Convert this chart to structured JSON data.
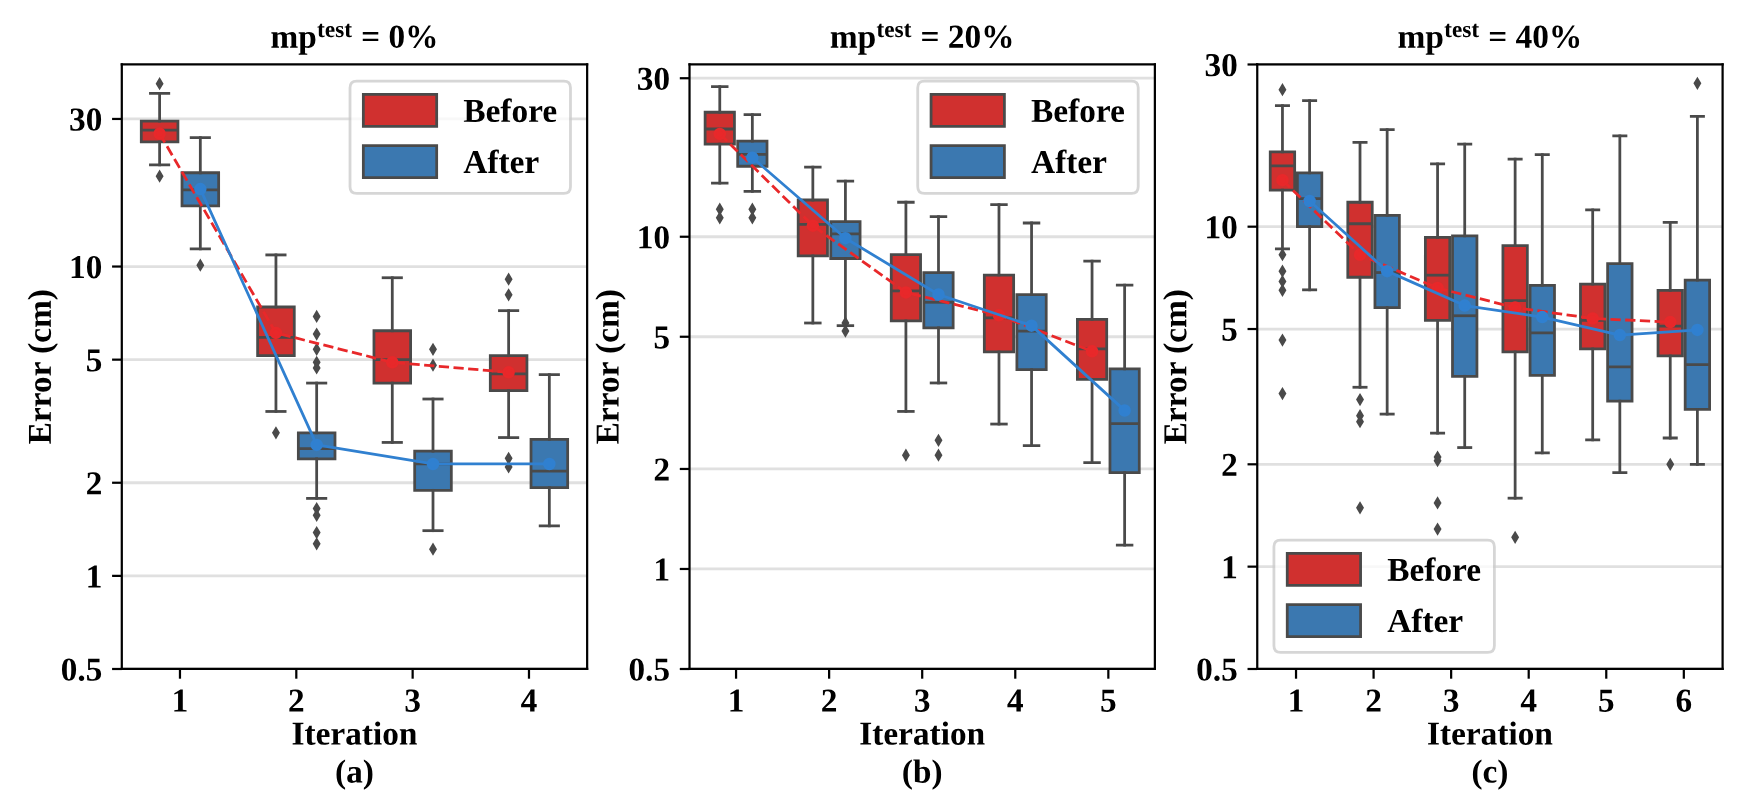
{
  "chart_data": [
    {
      "type": "box",
      "title": "mp$^{test}$ = 0%",
      "xlabel": "Iteration",
      "ylabel": "Error (cm)",
      "annotations": [
        "(a)"
      ],
      "categories": [
        "1",
        "2",
        "3",
        "4"
      ],
      "log": true,
      "ylim": [
        0.5,
        45
      ],
      "yticks": [
        0.5,
        1,
        2,
        5,
        10,
        30
      ],
      "grid": "y",
      "legend": "top right",
      "marker": "circle",
      "series": [
        {
          "name": "Before",
          "color": "#d0302f",
          "boxes": [
            {
              "low": 21.3,
              "q1": 25.3,
              "median": 27.6,
              "q3": 29.5,
              "high": 36.3,
              "outliers": [
                39,
                19.6
              ]
            },
            {
              "low": 3.4,
              "q1": 5.15,
              "median": 5.9,
              "q3": 7.4,
              "high": 10.9,
              "outliers": [
                2.9
              ]
            },
            {
              "low": 2.7,
              "q1": 4.2,
              "median": 5.0,
              "q3": 6.2,
              "high": 9.2
            },
            {
              "low": 2.8,
              "q1": 3.97,
              "median": 4.5,
              "q3": 5.15,
              "high": 7.2,
              "outliers": [
                9.1,
                8.1,
                2.4,
                2.25
              ]
            }
          ]
        },
        {
          "name": "After",
          "color": "#3b78b0",
          "boxes": [
            {
              "low": 11.4,
              "q1": 15.7,
              "median": 17.7,
              "q3": 20.1,
              "high": 26.1,
              "outliers": [
                10.1
              ]
            },
            {
              "low": 1.78,
              "q1": 2.39,
              "median": 2.58,
              "q3": 2.9,
              "high": 4.2,
              "outliers": [
                6.9,
                6.05,
                5.4,
                4.9,
                4.7,
                1.65,
                1.57,
                1.38,
                1.27
              ]
            },
            {
              "low": 1.4,
              "q1": 1.89,
              "median": 2.3,
              "q3": 2.53,
              "high": 3.73,
              "outliers": [
                5.4,
                4.8,
                1.22
              ]
            },
            {
              "low": 1.45,
              "q1": 1.93,
              "median": 2.18,
              "q3": 2.76,
              "high": 4.47
            }
          ]
        },
        {
          "type": "line",
          "color": "#e8282a",
          "line_style": "dashed",
          "values": [
            26.9,
            6.1,
            4.9,
            4.55
          ]
        },
        {
          "type": "line",
          "color": "#3080d0",
          "line_style": "solid",
          "values": [
            17.8,
            2.65,
            2.3,
            2.3
          ]
        }
      ]
    },
    {
      "type": "box",
      "title": "mp$^{test}$ = 20%",
      "xlabel": "Iteration",
      "ylabel": "Error (cm)",
      "annotations": [
        "(b)"
      ],
      "categories": [
        "1",
        "2",
        "3",
        "4",
        "5"
      ],
      "log": true,
      "ylim": [
        0.5,
        33
      ],
      "yticks": [
        0.5,
        1,
        2,
        5,
        10,
        30
      ],
      "grid": "y",
      "legend": "top right",
      "marker": "circle",
      "series": [
        {
          "name": "Before",
          "color": "#d0302f",
          "boxes": [
            {
              "low": 14.5,
              "q1": 19.0,
              "median": 21.1,
              "q3": 23.7,
              "high": 28.3,
              "outliers": [
                12.1,
                11.4
              ]
            },
            {
              "low": 5.5,
              "q1": 8.76,
              "median": 10.9,
              "q3": 12.9,
              "high": 16.2
            },
            {
              "low": 2.98,
              "q1": 5.58,
              "median": 6.87,
              "q3": 8.84,
              "high": 12.7,
              "outliers": [
                2.2
              ]
            },
            {
              "low": 2.73,
              "q1": 4.5,
              "median": 5.7,
              "q3": 7.67,
              "high": 12.5
            },
            {
              "low": 2.09,
              "q1": 3.72,
              "median": 4.6,
              "q3": 5.64,
              "high": 8.45
            }
          ]
        },
        {
          "name": "After",
          "color": "#3b78b0",
          "boxes": [
            {
              "low": 13.7,
              "q1": 16.3,
              "median": 17.7,
              "q3": 19.4,
              "high": 23.3,
              "outliers": [
                12.1,
                11.4
              ]
            },
            {
              "low": 5.4,
              "q1": 8.6,
              "median": 10.2,
              "q3": 11.1,
              "high": 14.7,
              "outliers": [
                5.5,
                5.2
              ]
            },
            {
              "low": 3.63,
              "q1": 5.32,
              "median": 6.35,
              "q3": 7.8,
              "high": 11.5,
              "outliers": [
                2.44,
                2.2
              ]
            },
            {
              "low": 2.35,
              "q1": 3.98,
              "median": 5.2,
              "q3": 6.7,
              "high": 11.0
            },
            {
              "low": 1.18,
              "q1": 1.95,
              "median": 2.74,
              "q3": 4.0,
              "high": 7.15
            }
          ]
        },
        {
          "type": "line",
          "color": "#e8282a",
          "line_style": "dashed",
          "values": [
            20.4,
            10.8,
            6.8,
            5.8,
            4.52
          ]
        },
        {
          "type": "line",
          "color": "#3080d0",
          "line_style": "solid",
          "values": [
            17.3,
            9.9,
            6.7,
            5.4,
            3.0
          ]
        }
      ]
    },
    {
      "type": "box",
      "title": "mp$^{test}$ = 40%",
      "xlabel": "Iteration",
      "ylabel": "Error (cm)",
      "annotations": [
        "(c)"
      ],
      "categories": [
        "1",
        "2",
        "3",
        "4",
        "5",
        "6"
      ],
      "log": true,
      "ylim": [
        0.5,
        30
      ],
      "yticks": [
        0.5,
        1,
        2,
        5,
        10,
        30
      ],
      "grid": "y",
      "legend": "bottom left",
      "marker": "circle",
      "series": [
        {
          "name": "Before",
          "color": "#d0302f",
          "boxes": [
            {
              "low": 8.6,
              "q1": 12.8,
              "median": 15.1,
              "q3": 16.6,
              "high": 22.7,
              "outliers": [
                25.3,
                8.27,
                7.4,
                6.9,
                6.5,
                4.64,
                3.23
              ]
            },
            {
              "low": 3.37,
              "q1": 7.1,
              "median": 10.2,
              "q3": 11.8,
              "high": 17.7,
              "outliers": [
                3.1,
                2.78,
                2.67,
                1.49
              ]
            },
            {
              "low": 2.47,
              "q1": 5.3,
              "median": 7.2,
              "q3": 9.3,
              "high": 15.3,
              "outliers": [
                2.1,
                2.05,
                1.54,
                1.29
              ]
            },
            {
              "low": 1.59,
              "q1": 4.28,
              "median": 6.06,
              "q3": 8.8,
              "high": 15.8,
              "outliers": [
                1.22
              ]
            },
            {
              "low": 2.36,
              "q1": 4.37,
              "median": 5.3,
              "q3": 6.78,
              "high": 11.2
            },
            {
              "low": 2.39,
              "q1": 4.17,
              "median": 5.1,
              "q3": 6.5,
              "high": 10.3,
              "outliers": [
                2.0
              ]
            }
          ]
        },
        {
          "name": "After",
          "color": "#3b78b0",
          "boxes": [
            {
              "low": 6.52,
              "q1": 10.0,
              "median": 12.1,
              "q3": 14.4,
              "high": 23.5
            },
            {
              "low": 2.81,
              "q1": 5.78,
              "median": 7.33,
              "q3": 10.8,
              "high": 19.3
            },
            {
              "low": 2.24,
              "q1": 3.63,
              "median": 5.47,
              "q3": 9.4,
              "high": 17.5
            },
            {
              "low": 2.16,
              "q1": 3.65,
              "median": 4.87,
              "q3": 6.72,
              "high": 16.3
            },
            {
              "low": 1.89,
              "q1": 3.07,
              "median": 3.87,
              "q3": 7.79,
              "high": 18.5
            },
            {
              "low": 2.0,
              "q1": 2.9,
              "median": 3.93,
              "q3": 6.96,
              "high": 21.1,
              "outliers": [
                26.4
              ]
            }
          ]
        },
        {
          "type": "line",
          "color": "#e8282a",
          "line_style": "dashed",
          "values": [
            13.7,
            8.27,
            6.6,
            5.78,
            5.37,
            5.24
          ]
        },
        {
          "type": "line",
          "color": "#3080d0",
          "line_style": "solid",
          "values": [
            11.9,
            7.4,
            5.86,
            5.42,
            4.8,
            4.97
          ]
        }
      ]
    }
  ]
}
